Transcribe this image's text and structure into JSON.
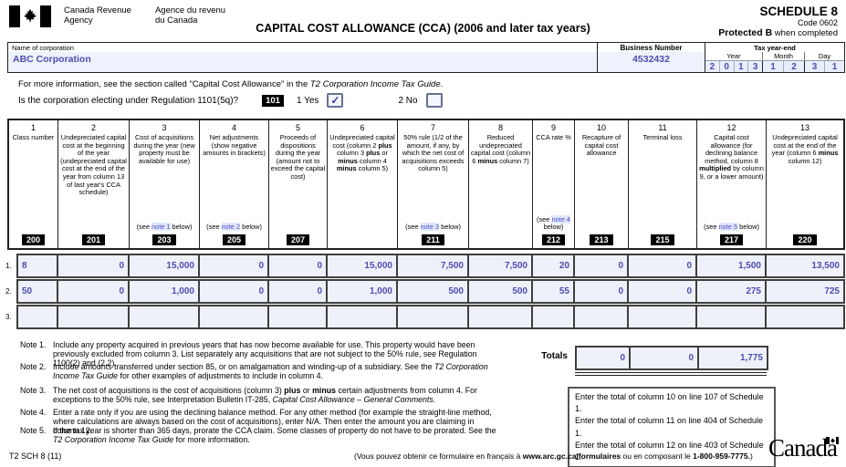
{
  "header": {
    "agency_en_line1": "Canada Revenue",
    "agency_en_line2": "Agency",
    "agency_fr_line1": "Agence du revenu",
    "agency_fr_line2": "du Canada",
    "title": "CAPITAL COST ALLOWANCE (CCA)  (2006 and later tax years)",
    "schedule": "SCHEDULE 8",
    "code": "Code 0602",
    "protected_bold": "Protected B",
    "protected_rest": " when completed"
  },
  "identification": {
    "name_label": "Name of corporation",
    "name_value": "ABC Corporation",
    "business_number_label": "Business Number",
    "business_number_value": "4532432",
    "tax_year_end_label": "Tax year-end",
    "year_label": "Year",
    "month_label": "Month",
    "day_label": "Day",
    "year_digits": [
      "2",
      "0",
      "1",
      "3"
    ],
    "month_digits": [
      "1",
      "2"
    ],
    "day_digits": [
      "3",
      "1"
    ]
  },
  "info_line": "For more information, see the section called \"Capital Cost Allowance\" in the _T2 Corporation Income Tax Guide_.",
  "election": {
    "question": "Is the corporation electing under Regulation 1101(5q)?",
    "code": "101",
    "yes_label": "1 Yes",
    "no_label": "2 No",
    "yes_checked": true,
    "no_checked": false,
    "check_glyph": "✓"
  },
  "table": {
    "columns": [
      {
        "num": "1",
        "title": "Class number",
        "code": "200"
      },
      {
        "num": "2",
        "title": "Undepreciated capital cost at the beginning of the year (undepreciated capital cost at the end of the year from column 13 of last year's  CCA schedule)",
        "code": "201"
      },
      {
        "num": "3",
        "title": "Cost of acquisitions during the year (new property must be available for use)",
        "note": {
          "pre": "(see ",
          "link": "note 1",
          "post": " below)"
        },
        "code": "203"
      },
      {
        "num": "4",
        "title": "Net adjustments (show negative amounts in brackets)",
        "note": {
          "pre": "(see ",
          "link": "note 2",
          "post": " below)"
        },
        "code": "205"
      },
      {
        "num": "5",
        "title": "Proceeds of dispositions during the year (amount not to exceed the capital cost)",
        "code": "207"
      },
      {
        "num": "6",
        "title": "Undepreciated capital cost (column 2 *plus* column 3 *plus* or *minus* column 4 *minus* column 5)"
      },
      {
        "num": "7",
        "title": "50% rule (1/2 of the amount, if any, by which the net cost of acquisitions exceeds column 5)",
        "note": {
          "pre": "(see ",
          "link": "note 3",
          "post": " below)"
        },
        "code": "211"
      },
      {
        "num": "8",
        "title": "Reduced undepreciated capital cost (column 6 *minus* column 7)"
      },
      {
        "num": "9",
        "title": "CCA rate %",
        "note": {
          "pre": "(see ",
          "link": "note 4",
          "post": " below)"
        },
        "code": "212"
      },
      {
        "num": "10",
        "title": "Recapture of capital cost allowance",
        "code": "213"
      },
      {
        "num": "11",
        "title": "Terminal loss",
        "code": "215"
      },
      {
        "num": "12",
        "title": "Capital cost allowance (for declining balance method, column 8 *multiplied* by column 9, or a lower amount)",
        "note": {
          "pre": "(see ",
          "link": "note 5",
          "post": " below)"
        },
        "code": "217"
      },
      {
        "num": "13",
        "title": "Undepreciated capital cost at the end of the year (column 6 *minus* column 12)",
        "code": "220"
      }
    ],
    "rows": [
      {
        "label": "1.",
        "values": [
          "8",
          "0",
          "15,000",
          "0",
          "0",
          "15,000",
          "7,500",
          "7,500",
          "20",
          "0",
          "0",
          "1,500",
          "13,500"
        ]
      },
      {
        "label": "2.",
        "values": [
          "50",
          "0",
          "1,000",
          "0",
          "0",
          "1,000",
          "500",
          "500",
          "55",
          "0",
          "0",
          "275",
          "725"
        ]
      },
      {
        "label": "3.",
        "values": [
          "",
          "",
          "",
          "",
          "",
          "",
          "",
          "",
          "",
          "",
          "",
          "",
          ""
        ]
      }
    ]
  },
  "notes": [
    {
      "label": "Note 1.",
      "text": "Include any property acquired in previous years that has now become available for use. This property would have been previously excluded from column 3. List separately any acquisitions that are not subject to the 50% rule, see Regulation 1100(2) and (2.2)."
    },
    {
      "label": "Note 2.",
      "text": "Include amounts transferred under section 85, or on amalgamation and winding-up of a subsidiary. See the _T2 Corporation Income Tax Guide_ for other examples of adjustments to include in column 4."
    },
    {
      "label": "Note 3.",
      "text": "The net cost of acquisitions is the cost of acquisitions (column 3) *plus* or *minus* certain adjustments from column 4. For exceptions to the 50% rule, see Interpretation Bulletin IT-285, _Capital Cost Allowance – General Comments_."
    },
    {
      "label": "Note 4.",
      "text": "Enter a rate only if you are using the declining balance method. For any other method (for example the straight-line method, where calculations are always based on the cost of acquisitions), enter N/A. Then enter the amount you are claiming in column 12."
    },
    {
      "label": "Note 5.",
      "text": "If the tax year is shorter than 365 days, prorate the CCA claim. Some classes of property do not have to be prorated. See the _T2 Corporation Income Tax Guide_ for more information."
    }
  ],
  "totals": {
    "label": "Totals",
    "values": [
      "0",
      "0",
      "1,775"
    ]
  },
  "schedule1_instructions": [
    "Enter the total of column 10 on line 107 of Schedule 1.",
    "Enter the total of column 11 on line 404 of Schedule 1.",
    "Enter the total of column 12 on line 403 of Schedule 1."
  ],
  "footer": {
    "form_code": "T2 SCH 8 (11)",
    "french_note": "(Vous pouvez obtenir ce formulaire en français à *www.arc.gc.ca/formulaires* ou en composant le *1-800-959-7775.*)",
    "wordmark": "Canada"
  },
  "colors": {
    "value_blue": "#4d4db2",
    "note_link_blue": "#4d4dd0",
    "cell_background": "#eef1fa",
    "code_box_background": "#000000"
  }
}
